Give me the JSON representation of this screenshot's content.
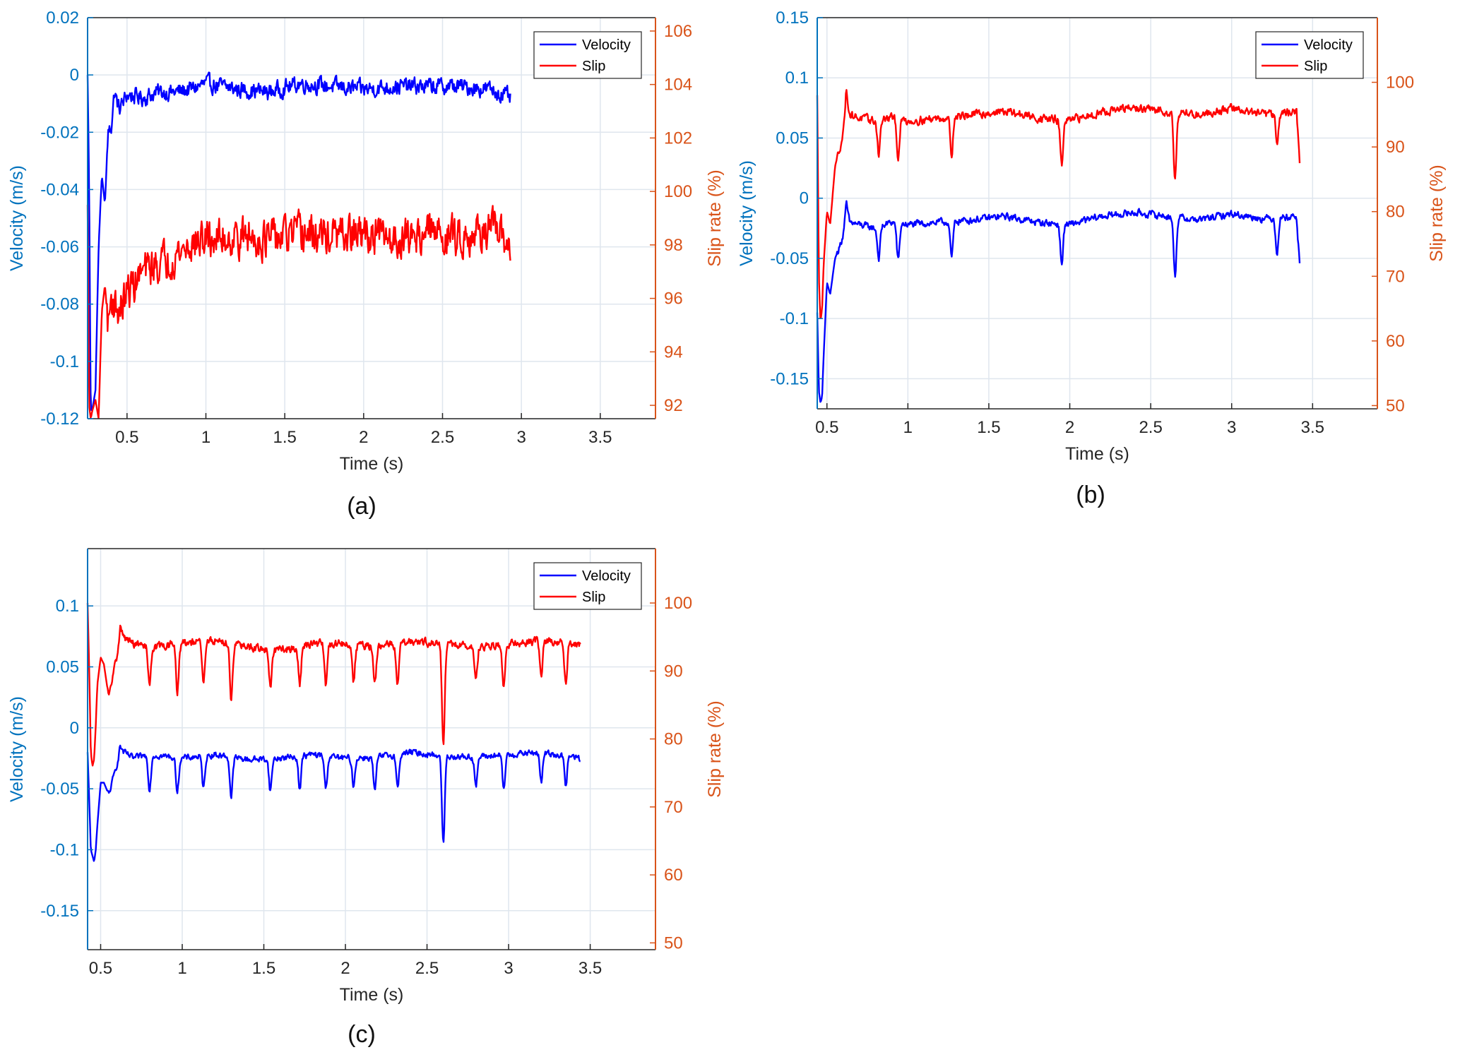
{
  "figure": {
    "panel_labels": [
      "(a)",
      "(b)",
      "(c)"
    ]
  },
  "colors": {
    "velocity": "#0000ff",
    "slip": "#ff0000",
    "left_axis": "#0072bd",
    "right_axis": "#d95319",
    "grid": "#dfe6ee",
    "frame": "#262626"
  },
  "chart_data": [
    {
      "type": "line",
      "panel": "(a)",
      "xlabel": "Time (s)",
      "ylabel": "Velocity (m/s)",
      "y2label": "Slip rate (%)",
      "xlim": [
        0.25,
        3.85
      ],
      "ylim": [
        -0.12,
        0.02
      ],
      "y2lim": [
        91.5,
        106.5
      ],
      "xticks": [
        0.5,
        1,
        1.5,
        2,
        2.5,
        3,
        3.5
      ],
      "xtick_labels": [
        "0.5",
        "1",
        "1.5",
        "2",
        "2.5",
        "3",
        "3.5"
      ],
      "yticks": [
        -0.12,
        -0.1,
        -0.08,
        -0.06,
        -0.04,
        -0.02,
        0,
        0.02
      ],
      "ytick_labels": [
        "-0.12",
        "-0.1",
        "-0.08",
        "-0.06",
        "-0.04",
        "-0.02",
        "0",
        "0.02"
      ],
      "y2ticks": [
        92,
        94,
        96,
        98,
        100,
        102,
        104,
        106
      ],
      "y2tick_labels": [
        "92",
        "94",
        "96",
        "98",
        "100",
        "102",
        "104",
        "106"
      ],
      "grid": true,
      "legend": {
        "position": "top-right",
        "entries": [
          "Velocity",
          "Slip"
        ]
      },
      "series": [
        {
          "name": "Velocity",
          "axis": "left",
          "x": [
            0.25,
            0.26,
            0.27,
            0.28,
            0.3,
            0.32,
            0.34,
            0.36,
            0.38,
            0.4,
            0.42,
            0.45,
            0.5,
            0.6,
            0.7,
            0.8,
            0.9,
            1.0,
            1.2,
            1.4,
            1.6,
            1.8,
            2.0,
            2.2,
            2.4,
            2.6,
            2.8,
            2.93
          ],
          "y": [
            0.0,
            -0.04,
            -0.117,
            -0.117,
            -0.11,
            -0.06,
            -0.035,
            -0.045,
            -0.02,
            -0.018,
            -0.006,
            -0.012,
            -0.007,
            -0.008,
            -0.006,
            -0.006,
            -0.005,
            -0.003,
            -0.005,
            -0.006,
            -0.003,
            -0.004,
            -0.005,
            -0.004,
            -0.004,
            -0.004,
            -0.005,
            -0.008
          ],
          "noise": 0.0045
        },
        {
          "name": "Slip",
          "axis": "right",
          "x": [
            0.25,
            0.26,
            0.27,
            0.28,
            0.3,
            0.32,
            0.34,
            0.36,
            0.38,
            0.4,
            0.45,
            0.5,
            0.6,
            0.7,
            0.8,
            0.9,
            1.0,
            1.2,
            1.4,
            1.6,
            1.8,
            2.0,
            2.2,
            2.4,
            2.6,
            2.8,
            2.93
          ],
          "y": [
            99.5,
            92.0,
            91.5,
            91.8,
            92.2,
            91.5,
            95.5,
            96.5,
            95.0,
            96.0,
            95.5,
            96.2,
            97.0,
            97.3,
            97.6,
            98.0,
            98.2,
            98.3,
            98.2,
            98.4,
            98.3,
            98.4,
            98.2,
            98.5,
            98.3,
            98.6,
            98.0
          ],
          "noise": 1.1
        }
      ]
    },
    {
      "type": "line",
      "panel": "(b)",
      "xlabel": "Time (s)",
      "ylabel": "Velocity (m/s)",
      "y2label": "Slip rate (%)",
      "xlim": [
        0.44,
        3.9
      ],
      "ylim": [
        -0.175,
        0.15
      ],
      "y2lim": [
        49.5,
        110
      ],
      "xticks": [
        0.5,
        1,
        1.5,
        2,
        2.5,
        3,
        3.5
      ],
      "xtick_labels": [
        "0.5",
        "1",
        "1.5",
        "2",
        "2.5",
        "3",
        "3.5"
      ],
      "yticks": [
        -0.15,
        -0.1,
        -0.05,
        0,
        0.05,
        0.1,
        0.15
      ],
      "ytick_labels": [
        "-0.15",
        "-0.1",
        "-0.05",
        "0",
        "0.05",
        "0.1",
        "0.15"
      ],
      "y2ticks": [
        50,
        60,
        70,
        80,
        90,
        100
      ],
      "y2tick_labels": [
        "50",
        "60",
        "70",
        "80",
        "90",
        "100"
      ],
      "grid": true,
      "legend": {
        "position": "top-right",
        "entries": [
          "Velocity",
          "Slip"
        ]
      },
      "series": [
        {
          "name": "Velocity",
          "axis": "left",
          "x": [
            0.44,
            0.45,
            0.46,
            0.47,
            0.48,
            0.5,
            0.52,
            0.55,
            0.58,
            0.6,
            0.62,
            0.64,
            0.7,
            0.8,
            0.9,
            1.0,
            1.2,
            1.4,
            1.6,
            1.8,
            2.0,
            2.2,
            2.4,
            2.6,
            2.8,
            3.0,
            3.2,
            3.4,
            3.42
          ],
          "y": [
            -0.095,
            -0.16,
            -0.17,
            -0.165,
            -0.13,
            -0.07,
            -0.08,
            -0.05,
            -0.04,
            -0.03,
            -0.005,
            -0.02,
            -0.022,
            -0.025,
            -0.02,
            -0.022,
            -0.02,
            -0.018,
            -0.015,
            -0.02,
            -0.022,
            -0.015,
            -0.012,
            -0.015,
            -0.018,
            -0.013,
            -0.017,
            -0.015,
            -0.055
          ],
          "noise": 0.0045,
          "dips": [
            [
              0.82,
              -0.05
            ],
            [
              0.94,
              -0.052
            ],
            [
              1.27,
              -0.05
            ],
            [
              1.95,
              -0.055
            ],
            [
              2.65,
              -0.065
            ],
            [
              3.28,
              -0.045
            ]
          ]
        },
        {
          "name": "Slip",
          "axis": "right",
          "x": [
            0.44,
            0.45,
            0.46,
            0.47,
            0.48,
            0.5,
            0.52,
            0.55,
            0.58,
            0.6,
            0.62,
            0.64,
            0.7,
            0.8,
            0.9,
            1.0,
            1.2,
            1.4,
            1.6,
            1.8,
            2.0,
            2.2,
            2.4,
            2.6,
            2.8,
            3.0,
            3.2,
            3.4,
            3.42
          ],
          "y": [
            98.0,
            70.0,
            63.0,
            65.0,
            72.0,
            80.0,
            78.0,
            87.0,
            90.0,
            92.0,
            99.0,
            95.0,
            94.5,
            94.0,
            94.5,
            94.0,
            94.5,
            95.0,
            95.5,
            94.5,
            94.0,
            95.5,
            96.0,
            95.5,
            95.0,
            96.0,
            95.0,
            95.5,
            88.0
          ],
          "noise": 1.0,
          "dips": [
            [
              0.82,
              89.0
            ],
            [
              0.94,
              88.5
            ],
            [
              1.27,
              89.0
            ],
            [
              1.95,
              87.0
            ],
            [
              2.65,
              85.0
            ],
            [
              3.28,
              91.0
            ]
          ]
        }
      ]
    },
    {
      "type": "line",
      "panel": "(c)",
      "xlabel": "Time (s)",
      "ylabel": "Velocity (m/s)",
      "y2label": "Slip rate (%)",
      "xlim": [
        0.42,
        3.9
      ],
      "ylim": [
        -0.182,
        0.147
      ],
      "y2lim": [
        49.0,
        108.0
      ],
      "xticks": [
        0.5,
        1,
        1.5,
        2,
        2.5,
        3,
        3.5
      ],
      "xtick_labels": [
        "0.5",
        "1",
        "1.5",
        "2",
        "2.5",
        "3",
        "3.5"
      ],
      "yticks": [
        -0.15,
        -0.1,
        -0.05,
        0,
        0.05,
        0.1
      ],
      "ytick_labels": [
        "-0.15",
        "-0.1",
        "-0.05",
        "0",
        "0.05",
        "0.1"
      ],
      "y2ticks": [
        50,
        60,
        70,
        80,
        90,
        100
      ],
      "y2tick_labels": [
        "50",
        "60",
        "70",
        "80",
        "90",
        "100"
      ],
      "grid": true,
      "legend": {
        "position": "top-right",
        "entries": [
          "Velocity",
          "Slip"
        ]
      },
      "series": [
        {
          "name": "Velocity",
          "axis": "left",
          "x": [
            0.42,
            0.43,
            0.44,
            0.45,
            0.46,
            0.47,
            0.48,
            0.5,
            0.52,
            0.55,
            0.58,
            0.6,
            0.62,
            0.64,
            0.7,
            0.8,
            1.0,
            1.2,
            1.4,
            1.6,
            1.8,
            2.0,
            2.2,
            2.4,
            2.6,
            2.8,
            3.0,
            3.2,
            3.4,
            3.44
          ],
          "y": [
            -0.02,
            -0.06,
            -0.1,
            -0.105,
            -0.11,
            -0.1,
            -0.08,
            -0.045,
            -0.045,
            -0.055,
            -0.04,
            -0.03,
            -0.015,
            -0.02,
            -0.025,
            -0.022,
            -0.025,
            -0.022,
            -0.026,
            -0.025,
            -0.022,
            -0.025,
            -0.024,
            -0.02,
            -0.023,
            -0.024,
            -0.022,
            -0.02,
            -0.024,
            -0.025
          ],
          "noise": 0.004,
          "dips": [
            [
              0.8,
              -0.05
            ],
            [
              0.97,
              -0.052
            ],
            [
              1.13,
              -0.05
            ],
            [
              1.3,
              -0.057
            ],
            [
              1.54,
              -0.052
            ],
            [
              1.72,
              -0.05
            ],
            [
              1.88,
              -0.05
            ],
            [
              2.05,
              -0.048
            ],
            [
              2.18,
              -0.052
            ],
            [
              2.32,
              -0.05
            ],
            [
              2.6,
              -0.095
            ],
            [
              2.8,
              -0.048
            ],
            [
              2.97,
              -0.05
            ],
            [
              3.2,
              -0.045
            ],
            [
              3.35,
              -0.047
            ]
          ]
        },
        {
          "name": "Slip",
          "axis": "right",
          "x": [
            0.42,
            0.43,
            0.44,
            0.45,
            0.46,
            0.47,
            0.48,
            0.5,
            0.52,
            0.55,
            0.58,
            0.6,
            0.62,
            0.64,
            0.7,
            0.8,
            1.0,
            1.2,
            1.4,
            1.6,
            1.8,
            2.0,
            2.2,
            2.4,
            2.6,
            2.8,
            3.0,
            3.2,
            3.4,
            3.44
          ],
          "y": [
            100.0,
            90.0,
            78.0,
            76.0,
            77.0,
            82.0,
            88.0,
            92.0,
            91.0,
            86.0,
            90.0,
            92.0,
            96.5,
            95.0,
            94.0,
            93.5,
            94.0,
            94.5,
            93.5,
            93.0,
            94.0,
            94.0,
            93.5,
            94.5,
            94.0,
            93.5,
            94.0,
            94.5,
            94.0,
            94.0
          ],
          "noise": 0.9,
          "dips": [
            [
              0.8,
              88.0
            ],
            [
              0.97,
              87.0
            ],
            [
              1.13,
              88.0
            ],
            [
              1.3,
              86.0
            ],
            [
              1.54,
              87.5
            ],
            [
              1.72,
              88.0
            ],
            [
              1.88,
              88.0
            ],
            [
              2.05,
              88.5
            ],
            [
              2.18,
              88.0
            ],
            [
              2.32,
              88.0
            ],
            [
              2.6,
              79.0
            ],
            [
              2.8,
              88.5
            ],
            [
              2.97,
              88.0
            ],
            [
              3.2,
              89.0
            ],
            [
              3.35,
              88.5
            ]
          ]
        }
      ]
    }
  ]
}
